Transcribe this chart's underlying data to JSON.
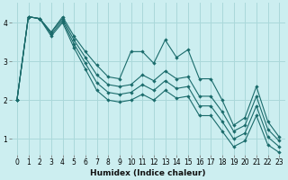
{
  "xlabel": "Humidex (Indice chaleur)",
  "bg_color": "#cceef0",
  "grid_color": "#aad8da",
  "line_color": "#1a6b6b",
  "xlim": [
    -0.5,
    23.5
  ],
  "ylim": [
    0.6,
    4.5
  ],
  "yticks": [
    1,
    2,
    3,
    4
  ],
  "xticks": [
    0,
    1,
    2,
    3,
    4,
    5,
    6,
    7,
    8,
    9,
    10,
    11,
    12,
    13,
    14,
    15,
    16,
    17,
    18,
    19,
    20,
    21,
    22,
    23
  ],
  "series": [
    [
      2.0,
      4.15,
      4.1,
      3.75,
      4.15,
      3.65,
      3.25,
      2.9,
      2.6,
      2.55,
      3.25,
      3.25,
      2.95,
      3.55,
      3.1,
      3.3,
      2.55,
      2.55,
      2.0,
      1.35,
      1.55,
      2.35,
      1.45,
      1.05
    ],
    [
      2.0,
      4.15,
      4.1,
      3.75,
      4.1,
      3.55,
      3.1,
      2.65,
      2.4,
      2.35,
      2.4,
      2.65,
      2.5,
      2.75,
      2.55,
      2.6,
      2.1,
      2.1,
      1.7,
      1.2,
      1.35,
      2.1,
      1.25,
      0.95
    ],
    [
      2.0,
      4.15,
      4.1,
      3.7,
      4.05,
      3.45,
      2.95,
      2.45,
      2.2,
      2.15,
      2.2,
      2.4,
      2.25,
      2.5,
      2.3,
      2.35,
      1.85,
      1.85,
      1.45,
      1.0,
      1.15,
      1.85,
      1.05,
      0.8
    ],
    [
      2.0,
      4.15,
      4.1,
      3.65,
      4.0,
      3.35,
      2.8,
      2.25,
      2.0,
      1.95,
      2.0,
      2.15,
      2.0,
      2.25,
      2.05,
      2.1,
      1.6,
      1.6,
      1.2,
      0.8,
      0.95,
      1.6,
      0.85,
      0.65
    ]
  ]
}
